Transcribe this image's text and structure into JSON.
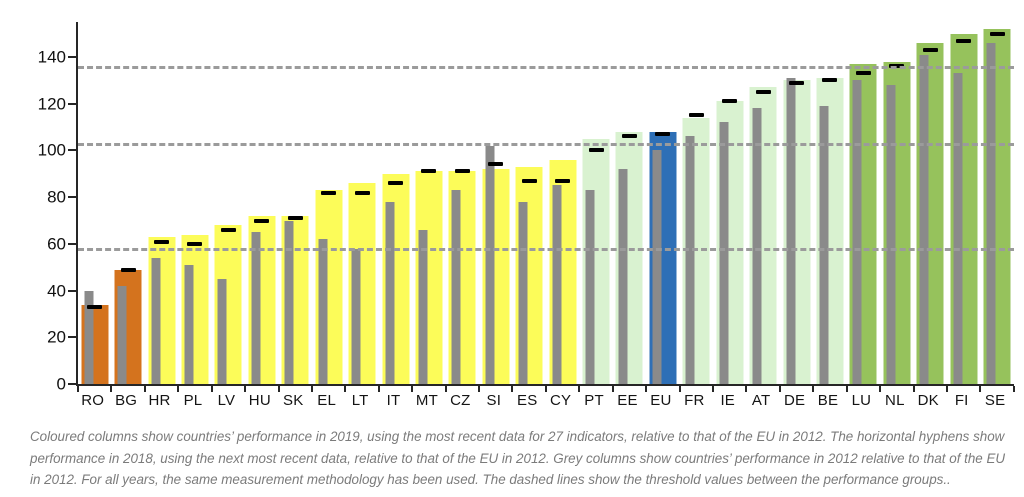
{
  "chart_data": {
    "type": "bar",
    "title": "",
    "xlabel": "",
    "ylabel": "",
    "yticks": [
      0,
      20,
      40,
      60,
      80,
      100,
      120,
      140
    ],
    "ylim": [
      0,
      155
    ],
    "grid": false,
    "legend": "none",
    "threshold_lines": [
      57,
      102,
      135
    ],
    "series_meaning": {
      "colored_column": "performance in 2019 relative to EU 2012",
      "hyphen": "performance in 2018 relative to EU 2012",
      "grey_column": "performance in 2012 relative to EU 2012"
    },
    "colors": {
      "modest": "#d4731e",
      "moderate": "#fcfc59",
      "strong": "#d9f2d0",
      "leader": "#96c25c",
      "eu": "#2e6fb6",
      "grey": "#8a8a8a",
      "hyphen": "#000000",
      "dashed": "#9b9b9b",
      "axis": "#262626"
    },
    "categories": [
      "RO",
      "BG",
      "HR",
      "PL",
      "LV",
      "HU",
      "SK",
      "EL",
      "LT",
      "IT",
      "MT",
      "CZ",
      "SI",
      "ES",
      "CY",
      "PT",
      "EE",
      "EU",
      "FR",
      "IE",
      "AT",
      "DE",
      "BE",
      "LU",
      "NL",
      "DK",
      "FI",
      "SE"
    ],
    "countries": [
      {
        "code": "RO",
        "group": "modest",
        "v2019": 34,
        "v2018": 33,
        "v2012": 40
      },
      {
        "code": "BG",
        "group": "modest",
        "v2019": 49,
        "v2018": 49,
        "v2012": 42
      },
      {
        "code": "HR",
        "group": "moderate",
        "v2019": 63,
        "v2018": 61,
        "v2012": 54
      },
      {
        "code": "PL",
        "group": "moderate",
        "v2019": 64,
        "v2018": 60,
        "v2012": 51
      },
      {
        "code": "LV",
        "group": "moderate",
        "v2019": 68,
        "v2018": 66,
        "v2012": 45
      },
      {
        "code": "HU",
        "group": "moderate",
        "v2019": 72,
        "v2018": 70,
        "v2012": 65
      },
      {
        "code": "SK",
        "group": "moderate",
        "v2019": 72,
        "v2018": 71,
        "v2012": 70
      },
      {
        "code": "EL",
        "group": "moderate",
        "v2019": 83,
        "v2018": 82,
        "v2012": 62
      },
      {
        "code": "LT",
        "group": "moderate",
        "v2019": 86,
        "v2018": 82,
        "v2012": 58
      },
      {
        "code": "IT",
        "group": "moderate",
        "v2019": 90,
        "v2018": 86,
        "v2012": 78
      },
      {
        "code": "MT",
        "group": "moderate",
        "v2019": 91,
        "v2018": 91,
        "v2012": 66
      },
      {
        "code": "CZ",
        "group": "moderate",
        "v2019": 91,
        "v2018": 91,
        "v2012": 83
      },
      {
        "code": "SI",
        "group": "moderate",
        "v2019": 92,
        "v2018": 94,
        "v2012": 102
      },
      {
        "code": "ES",
        "group": "moderate",
        "v2019": 93,
        "v2018": 87,
        "v2012": 78
      },
      {
        "code": "CY",
        "group": "moderate",
        "v2019": 96,
        "v2018": 87,
        "v2012": 85
      },
      {
        "code": "PT",
        "group": "strong",
        "v2019": 105,
        "v2018": 100,
        "v2012": 83
      },
      {
        "code": "EE",
        "group": "strong",
        "v2019": 108,
        "v2018": 106,
        "v2012": 92
      },
      {
        "code": "EU",
        "group": "eu",
        "v2019": 108,
        "v2018": 107,
        "v2012": 100
      },
      {
        "code": "FR",
        "group": "strong",
        "v2019": 114,
        "v2018": 115,
        "v2012": 106
      },
      {
        "code": "IE",
        "group": "strong",
        "v2019": 121,
        "v2018": 121,
        "v2012": 112
      },
      {
        "code": "AT",
        "group": "strong",
        "v2019": 127,
        "v2018": 125,
        "v2012": 118
      },
      {
        "code": "DE",
        "group": "strong",
        "v2019": 130,
        "v2018": 129,
        "v2012": 131
      },
      {
        "code": "BE",
        "group": "strong",
        "v2019": 131,
        "v2018": 130,
        "v2012": 119
      },
      {
        "code": "LU",
        "group": "leader",
        "v2019": 137,
        "v2018": 133,
        "v2012": 130
      },
      {
        "code": "NL",
        "group": "leader",
        "v2019": 138,
        "v2018": 136,
        "v2012": 128
      },
      {
        "code": "DK",
        "group": "leader",
        "v2019": 146,
        "v2018": 143,
        "v2012": 141
      },
      {
        "code": "FI",
        "group": "leader",
        "v2019": 150,
        "v2018": 147,
        "v2012": 133
      },
      {
        "code": "SE",
        "group": "leader",
        "v2019": 152,
        "v2018": 150,
        "v2012": 146
      }
    ]
  },
  "footnote": "Coloured columns show countries’ performance in 2019, using the most recent data for 27 indicators, relative to that of the EU in 2012. The horizontal hyphens show performance in 2018, using the next most recent data, relative to that of the EU in 2012. Grey columns show countries’ performance in 2012 relative to that of the EU in 2012. For all years, the same measurement methodology has been used. The dashed lines show the threshold values between the performance groups.."
}
